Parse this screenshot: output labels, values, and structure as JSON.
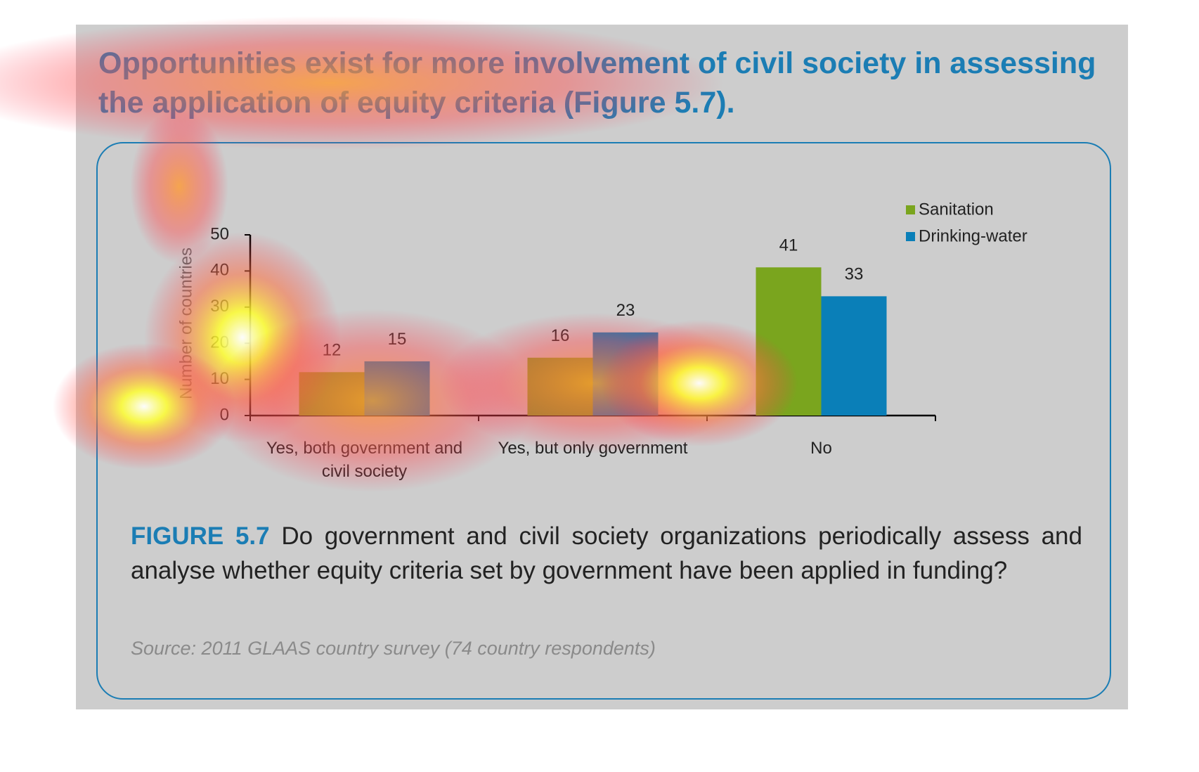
{
  "chart_data": {
    "type": "bar",
    "title": "Opportunities exist for more involvement of civil society in assessing the application of equity criteria (Figure 5.7).",
    "y_label": "Number of countries",
    "categories": [
      "Yes, both government and civil society",
      "Yes, but only government",
      "No"
    ],
    "series": [
      {
        "name": "Sanitation",
        "color": "#7aa51e",
        "values": [
          12,
          16,
          41
        ]
      },
      {
        "name": "Drinking-water",
        "color": "#0a7fb8",
        "values": [
          15,
          23,
          33
        ]
      }
    ],
    "ylim": [
      0,
      50
    ],
    "yticks": [
      0,
      10,
      20,
      30,
      40,
      50
    ],
    "legend": "top-right",
    "figure_label": "FIGURE 5.7",
    "caption": "Do government and civil society organizations periodically assess and analyse whether equity criteria set by government have been applied in funding?",
    "source": "Source: 2011 GLAAS country survey (74 country respondents)"
  }
}
